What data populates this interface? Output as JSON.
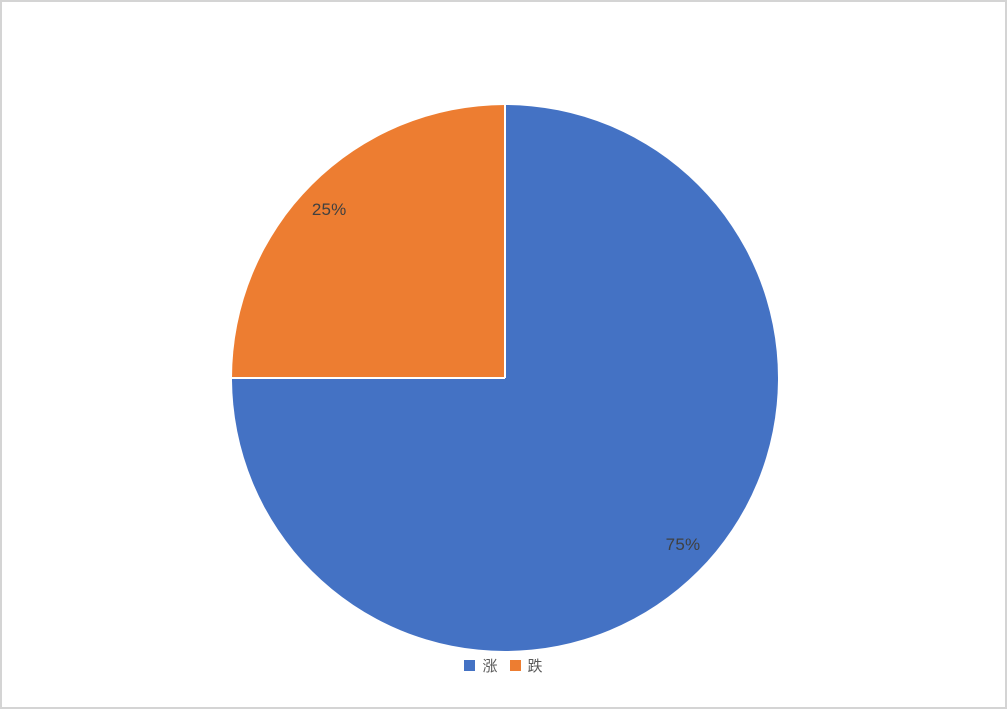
{
  "page": {
    "background": "#ffffff",
    "border_color": "#d4d4d4"
  },
  "chart_data": {
    "type": "pie",
    "title": "",
    "categories": [
      "涨",
      "跌"
    ],
    "values": [
      75,
      25
    ],
    "colors": [
      "#4472C4",
      "#ED7D31"
    ],
    "labels": [
      "75%",
      "25%"
    ],
    "label_color": "#404040",
    "start_angle_deg": 0,
    "direction": "clockwise",
    "slice_border_color": "#ffffff",
    "legend_position": "bottom",
    "legend": [
      {
        "label": "涨",
        "color": "#4472C4"
      },
      {
        "label": "跌",
        "color": "#ED7D31"
      }
    ]
  }
}
